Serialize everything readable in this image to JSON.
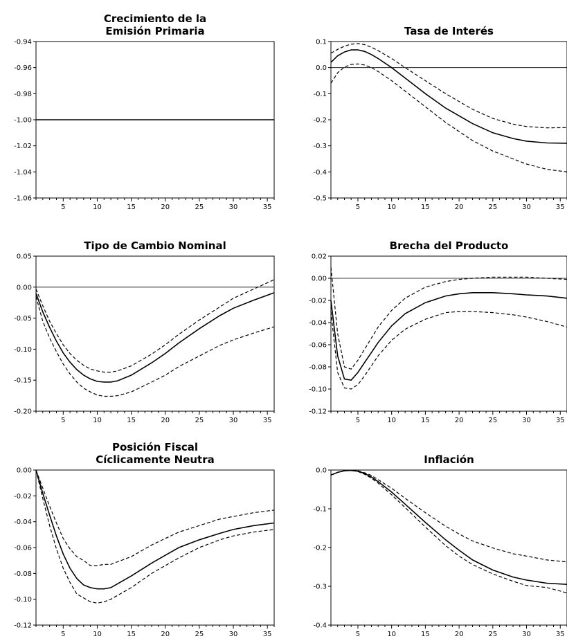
{
  "chart_data": [
    {
      "type": "line",
      "title": [
        "Crecimiento de la",
        "Emisión Primaria"
      ],
      "xlim": [
        1,
        36
      ],
      "ylim": [
        -1.06,
        -0.94
      ],
      "yticks": [
        -0.94,
        -0.96,
        -0.98,
        -1.0,
        -1.02,
        -1.04,
        -1.06
      ],
      "ytick_labels": [
        "-0.94",
        "-0.96",
        "-0.98",
        "-1.00",
        "-1.02",
        "-1.04",
        "-1.06"
      ],
      "xtick_labels": [
        "5",
        "10",
        "15",
        "20",
        "25",
        "30",
        "35"
      ],
      "zero_line": null,
      "series": [
        {
          "role": "response",
          "style": "solid",
          "x": [
            1,
            36
          ],
          "y": [
            -1.0,
            -1.0
          ]
        }
      ]
    },
    {
      "type": "line",
      "title": [
        "Tasa de Interés"
      ],
      "xlim": [
        1,
        36
      ],
      "ylim": [
        -0.5,
        0.1
      ],
      "yticks": [
        0.1,
        0.0,
        -0.1,
        -0.2,
        -0.3,
        -0.4,
        -0.5
      ],
      "ytick_labels": [
        "0.1",
        "0.0",
        "-0.1",
        "-0.2",
        "-0.3",
        "-0.4",
        "-0.5"
      ],
      "xtick_labels": [
        "5",
        "10",
        "15",
        "20",
        "25",
        "30",
        "35"
      ],
      "zero_line": 0,
      "series": [
        {
          "role": "response",
          "style": "solid",
          "x": [
            1,
            2,
            3,
            4,
            5,
            6,
            7,
            8,
            10,
            12,
            15,
            18,
            20,
            22,
            25,
            28,
            30,
            33,
            36
          ],
          "y": [
            0.02,
            0.045,
            0.06,
            0.068,
            0.068,
            0.062,
            0.05,
            0.035,
            0.0,
            -0.04,
            -0.1,
            -0.155,
            -0.185,
            -0.215,
            -0.25,
            -0.272,
            -0.282,
            -0.289,
            -0.29
          ]
        },
        {
          "role": "upper",
          "style": "dashed",
          "x": [
            1,
            2,
            3,
            4,
            5,
            6,
            7,
            8,
            10,
            12,
            15,
            18,
            20,
            22,
            25,
            28,
            30,
            33,
            36
          ],
          "y": [
            0.055,
            0.07,
            0.082,
            0.09,
            0.092,
            0.088,
            0.078,
            0.065,
            0.035,
            0.0,
            -0.05,
            -0.1,
            -0.13,
            -0.16,
            -0.195,
            -0.217,
            -0.226,
            -0.231,
            -0.23
          ]
        },
        {
          "role": "lower",
          "style": "dashed",
          "x": [
            1,
            2,
            3,
            4,
            5,
            6,
            7,
            8,
            10,
            12,
            15,
            18,
            20,
            22,
            25,
            28,
            30,
            33,
            36
          ],
          "y": [
            -0.06,
            -0.02,
            0.002,
            0.012,
            0.014,
            0.01,
            0.0,
            -0.015,
            -0.05,
            -0.09,
            -0.15,
            -0.21,
            -0.245,
            -0.28,
            -0.32,
            -0.35,
            -0.37,
            -0.39,
            -0.4
          ]
        }
      ]
    },
    {
      "type": "line",
      "title": [
        "Tipo de Cambio Nominal"
      ],
      "xlim": [
        1,
        36
      ],
      "ylim": [
        -0.2,
        0.05
      ],
      "yticks": [
        0.05,
        0.0,
        -0.05,
        -0.1,
        -0.15,
        -0.2
      ],
      "ytick_labels": [
        "0.05",
        "0.00",
        "-0.05",
        "-0.10",
        "-0.15",
        "-0.20"
      ],
      "xtick_labels": [
        "5",
        "10",
        "15",
        "20",
        "25",
        "30",
        "35"
      ],
      "zero_line": 0,
      "series": [
        {
          "role": "response",
          "style": "solid",
          "x": [
            1,
            2,
            3,
            4,
            5,
            6,
            7,
            8,
            9,
            10,
            11,
            12,
            13,
            15,
            18,
            20,
            22,
            25,
            28,
            30,
            33,
            36
          ],
          "y": [
            -0.01,
            -0.04,
            -0.065,
            -0.087,
            -0.106,
            -0.121,
            -0.133,
            -0.142,
            -0.148,
            -0.152,
            -0.153,
            -0.153,
            -0.151,
            -0.142,
            -0.122,
            -0.107,
            -0.09,
            -0.067,
            -0.046,
            -0.034,
            -0.021,
            -0.009
          ]
        },
        {
          "role": "upper",
          "style": "dashed",
          "x": [
            1,
            2,
            3,
            4,
            5,
            6,
            7,
            8,
            9,
            10,
            11,
            12,
            13,
            15,
            18,
            20,
            22,
            25,
            28,
            30,
            33,
            36
          ],
          "y": [
            -0.003,
            -0.03,
            -0.055,
            -0.075,
            -0.093,
            -0.107,
            -0.118,
            -0.126,
            -0.132,
            -0.135,
            -0.137,
            -0.137,
            -0.135,
            -0.127,
            -0.108,
            -0.093,
            -0.076,
            -0.053,
            -0.032,
            -0.018,
            -0.003,
            0.012
          ]
        },
        {
          "role": "lower",
          "style": "dashed",
          "x": [
            1,
            2,
            3,
            4,
            5,
            6,
            7,
            8,
            9,
            10,
            11,
            12,
            13,
            15,
            18,
            20,
            22,
            25,
            28,
            30,
            33,
            36
          ],
          "y": [
            -0.015,
            -0.055,
            -0.082,
            -0.104,
            -0.124,
            -0.14,
            -0.153,
            -0.163,
            -0.169,
            -0.174,
            -0.176,
            -0.176,
            -0.175,
            -0.169,
            -0.153,
            -0.142,
            -0.128,
            -0.111,
            -0.094,
            -0.085,
            -0.074,
            -0.064
          ]
        }
      ]
    },
    {
      "type": "line",
      "title": [
        "Brecha del Producto"
      ],
      "xlim": [
        1,
        36
      ],
      "ylim": [
        -0.12,
        0.02
      ],
      "yticks": [
        0.02,
        0.0,
        -0.02,
        -0.04,
        -0.06,
        -0.08,
        -0.1,
        -0.12
      ],
      "ytick_labels": [
        "0.02",
        "0.00",
        "-0.02",
        "-0.04",
        "-0.06",
        "-0.08",
        "-0.10",
        "-0.12"
      ],
      "xtick_labels": [
        "5",
        "10",
        "15",
        "20",
        "25",
        "30",
        "35"
      ],
      "zero_line": 0,
      "series": [
        {
          "role": "response",
          "style": "solid",
          "x": [
            1,
            2,
            3,
            4,
            5,
            6,
            7,
            8,
            10,
            12,
            15,
            18,
            20,
            22,
            25,
            28,
            30,
            33,
            36
          ],
          "y": [
            -0.02,
            -0.07,
            -0.091,
            -0.092,
            -0.085,
            -0.076,
            -0.067,
            -0.058,
            -0.043,
            -0.032,
            -0.022,
            -0.016,
            -0.014,
            -0.013,
            -0.013,
            -0.014,
            -0.015,
            -0.016,
            -0.018
          ]
        },
        {
          "role": "upper",
          "style": "dashed",
          "x": [
            1,
            2,
            3,
            4,
            5,
            6,
            7,
            8,
            10,
            12,
            15,
            18,
            20,
            22,
            25,
            28,
            30,
            33,
            36
          ],
          "y": [
            0.01,
            -0.05,
            -0.08,
            -0.082,
            -0.074,
            -0.064,
            -0.054,
            -0.044,
            -0.029,
            -0.018,
            -0.008,
            -0.003,
            -0.001,
            0.0,
            0.001,
            0.001,
            0.001,
            0.0,
            -0.001
          ]
        },
        {
          "role": "lower",
          "style": "dashed",
          "x": [
            1,
            2,
            3,
            4,
            5,
            6,
            7,
            8,
            10,
            12,
            15,
            18,
            20,
            22,
            25,
            28,
            30,
            33,
            36
          ],
          "y": [
            -0.03,
            -0.085,
            -0.099,
            -0.1,
            -0.096,
            -0.088,
            -0.079,
            -0.07,
            -0.056,
            -0.046,
            -0.037,
            -0.031,
            -0.03,
            -0.03,
            -0.031,
            -0.033,
            -0.035,
            -0.039,
            -0.044
          ]
        }
      ]
    },
    {
      "type": "line",
      "title": [
        "Posición Fiscal",
        "Cíclicamente Neutra"
      ],
      "xlim": [
        1,
        36
      ],
      "ylim": [
        -0.12,
        0.0
      ],
      "yticks": [
        0.0,
        -0.02,
        -0.04,
        -0.06,
        -0.08,
        -0.1,
        -0.12
      ],
      "ytick_labels": [
        "0.00",
        "-0.02",
        "-0.04",
        "-0.06",
        "-0.08",
        "-0.10",
        "-0.12"
      ],
      "xtick_labels": [
        "5",
        "10",
        "15",
        "20",
        "25",
        "30",
        "35"
      ],
      "zero_line": null,
      "series": [
        {
          "role": "response",
          "style": "solid",
          "x": [
            1,
            2,
            3,
            4,
            5,
            6,
            7,
            8,
            9,
            10,
            11,
            12,
            13,
            15,
            18,
            20,
            22,
            25,
            28,
            30,
            33,
            36
          ],
          "y": [
            0.0,
            -0.018,
            -0.035,
            -0.051,
            -0.065,
            -0.076,
            -0.084,
            -0.089,
            -0.091,
            -0.092,
            -0.092,
            -0.091,
            -0.088,
            -0.082,
            -0.072,
            -0.066,
            -0.06,
            -0.054,
            -0.049,
            -0.046,
            -0.043,
            -0.041
          ]
        },
        {
          "role": "upper",
          "style": "dashed",
          "x": [
            1,
            2,
            3,
            4,
            5,
            6,
            7,
            8,
            9,
            10,
            11,
            12,
            13,
            15,
            18,
            20,
            22,
            25,
            28,
            30,
            33,
            36
          ],
          "y": [
            0.0,
            -0.014,
            -0.028,
            -0.041,
            -0.053,
            -0.061,
            -0.067,
            -0.07,
            -0.074,
            -0.074,
            -0.073,
            -0.073,
            -0.071,
            -0.067,
            -0.058,
            -0.053,
            -0.048,
            -0.043,
            -0.038,
            -0.036,
            -0.033,
            -0.031
          ]
        },
        {
          "role": "lower",
          "style": "dashed",
          "x": [
            1,
            2,
            3,
            4,
            5,
            6,
            7,
            8,
            9,
            10,
            11,
            12,
            13,
            15,
            18,
            20,
            22,
            25,
            28,
            30,
            33,
            36
          ],
          "y": [
            0.0,
            -0.022,
            -0.043,
            -0.061,
            -0.076,
            -0.087,
            -0.096,
            -0.099,
            -0.102,
            -0.103,
            -0.102,
            -0.1,
            -0.097,
            -0.091,
            -0.08,
            -0.074,
            -0.068,
            -0.06,
            -0.054,
            -0.051,
            -0.048,
            -0.046
          ]
        }
      ]
    },
    {
      "type": "line",
      "title": [
        "Inflación"
      ],
      "xlim": [
        1,
        36
      ],
      "ylim": [
        -0.4,
        0.0
      ],
      "yticks": [
        0.0,
        -0.1,
        -0.2,
        -0.3,
        -0.4
      ],
      "ytick_labels": [
        "0.0",
        "-0.1",
        "-0.2",
        "-0.3",
        "-0.4"
      ],
      "xtick_labels": [
        "5",
        "10",
        "15",
        "20",
        "25",
        "30",
        "35"
      ],
      "zero_line": null,
      "series": [
        {
          "role": "response",
          "style": "solid",
          "x": [
            1,
            2,
            3,
            4,
            5,
            6,
            7,
            8,
            10,
            12,
            15,
            18,
            20,
            22,
            25,
            28,
            30,
            33,
            36
          ],
          "y": [
            -0.013,
            -0.006,
            -0.002,
            -0.001,
            -0.003,
            -0.009,
            -0.018,
            -0.03,
            -0.057,
            -0.088,
            -0.135,
            -0.18,
            -0.207,
            -0.232,
            -0.258,
            -0.276,
            -0.284,
            -0.292,
            -0.295
          ]
        },
        {
          "role": "upper",
          "style": "dashed",
          "x": [
            1,
            2,
            3,
            4,
            5,
            6,
            7,
            8,
            10,
            12,
            15,
            18,
            20,
            22,
            25,
            28,
            30,
            33,
            36
          ],
          "y": [
            -0.013,
            -0.006,
            -0.002,
            -0.001,
            -0.002,
            -0.007,
            -0.014,
            -0.025,
            -0.047,
            -0.073,
            -0.11,
            -0.145,
            -0.165,
            -0.183,
            -0.201,
            -0.216,
            -0.222,
            -0.232,
            -0.237
          ]
        },
        {
          "role": "lower",
          "style": "dashed",
          "x": [
            1,
            2,
            3,
            4,
            5,
            6,
            7,
            8,
            10,
            12,
            15,
            18,
            20,
            22,
            25,
            28,
            30,
            33,
            36
          ],
          "y": [
            -0.013,
            -0.006,
            -0.002,
            -0.001,
            -0.004,
            -0.011,
            -0.021,
            -0.034,
            -0.064,
            -0.097,
            -0.147,
            -0.195,
            -0.222,
            -0.244,
            -0.268,
            -0.287,
            -0.298,
            -0.303,
            -0.317
          ]
        }
      ]
    }
  ]
}
